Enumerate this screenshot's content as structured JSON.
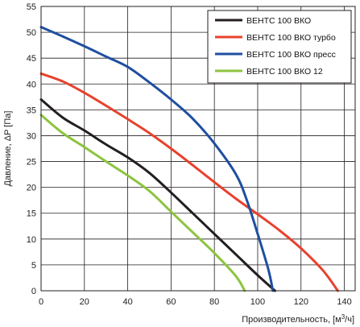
{
  "chart_data": {
    "type": "line",
    "xlabel": "Производительность, [м",
    "xlabel_sup": "3",
    "xlabel_end": "/ч]",
    "ylabel": "Давление, ΔP [Па]",
    "xlim": [
      0,
      145
    ],
    "ylim": [
      0,
      55
    ],
    "x_ticks": [
      0,
      20,
      40,
      60,
      80,
      100,
      120,
      140
    ],
    "y_ticks": [
      0,
      5,
      10,
      15,
      20,
      25,
      30,
      35,
      40,
      45,
      50,
      55
    ],
    "grid": true,
    "legend_position": "top-right",
    "series": [
      {
        "name": "ВЕНТС 100 ВКО",
        "color": "#231f20",
        "points": [
          [
            0,
            37
          ],
          [
            10,
            33.5
          ],
          [
            20,
            31
          ],
          [
            30,
            28.3
          ],
          [
            40,
            25.8
          ],
          [
            50,
            22.8
          ],
          [
            60,
            19
          ],
          [
            70,
            15
          ],
          [
            80,
            11
          ],
          [
            90,
            7
          ],
          [
            100,
            3
          ],
          [
            108,
            0
          ]
        ]
      },
      {
        "name": "ВЕНТС 100 ВКО турбо",
        "color": "#e8412c",
        "points": [
          [
            0,
            42
          ],
          [
            10,
            40.5
          ],
          [
            20,
            38.3
          ],
          [
            30,
            35.8
          ],
          [
            40,
            33.2
          ],
          [
            50,
            30.5
          ],
          [
            60,
            27.5
          ],
          [
            70,
            24.3
          ],
          [
            80,
            21
          ],
          [
            90,
            17.8
          ],
          [
            100,
            14.8
          ],
          [
            110,
            11.7
          ],
          [
            120,
            8.2
          ],
          [
            130,
            4
          ],
          [
            137,
            0
          ]
        ]
      },
      {
        "name": "ВЕНТС 100 ВКО пресс",
        "color": "#1f4fa0",
        "points": [
          [
            0,
            51
          ],
          [
            10,
            49.2
          ],
          [
            20,
            47.3
          ],
          [
            30,
            45.3
          ],
          [
            40,
            43.3
          ],
          [
            50,
            40.3
          ],
          [
            60,
            37
          ],
          [
            70,
            33.3
          ],
          [
            80,
            28.5
          ],
          [
            90,
            22.5
          ],
          [
            95,
            17.5
          ],
          [
            100,
            11
          ],
          [
            105,
            4
          ],
          [
            107,
            0
          ]
        ]
      },
      {
        "name": "ВЕНТС 100 ВКО 12",
        "color": "#8cc43f",
        "points": [
          [
            0,
            34
          ],
          [
            10,
            30.5
          ],
          [
            20,
            27.8
          ],
          [
            30,
            25
          ],
          [
            40,
            22.3
          ],
          [
            50,
            19.3
          ],
          [
            60,
            15.3
          ],
          [
            70,
            11.3
          ],
          [
            80,
            7.3
          ],
          [
            90,
            2.8
          ],
          [
            94,
            0
          ]
        ]
      }
    ]
  }
}
